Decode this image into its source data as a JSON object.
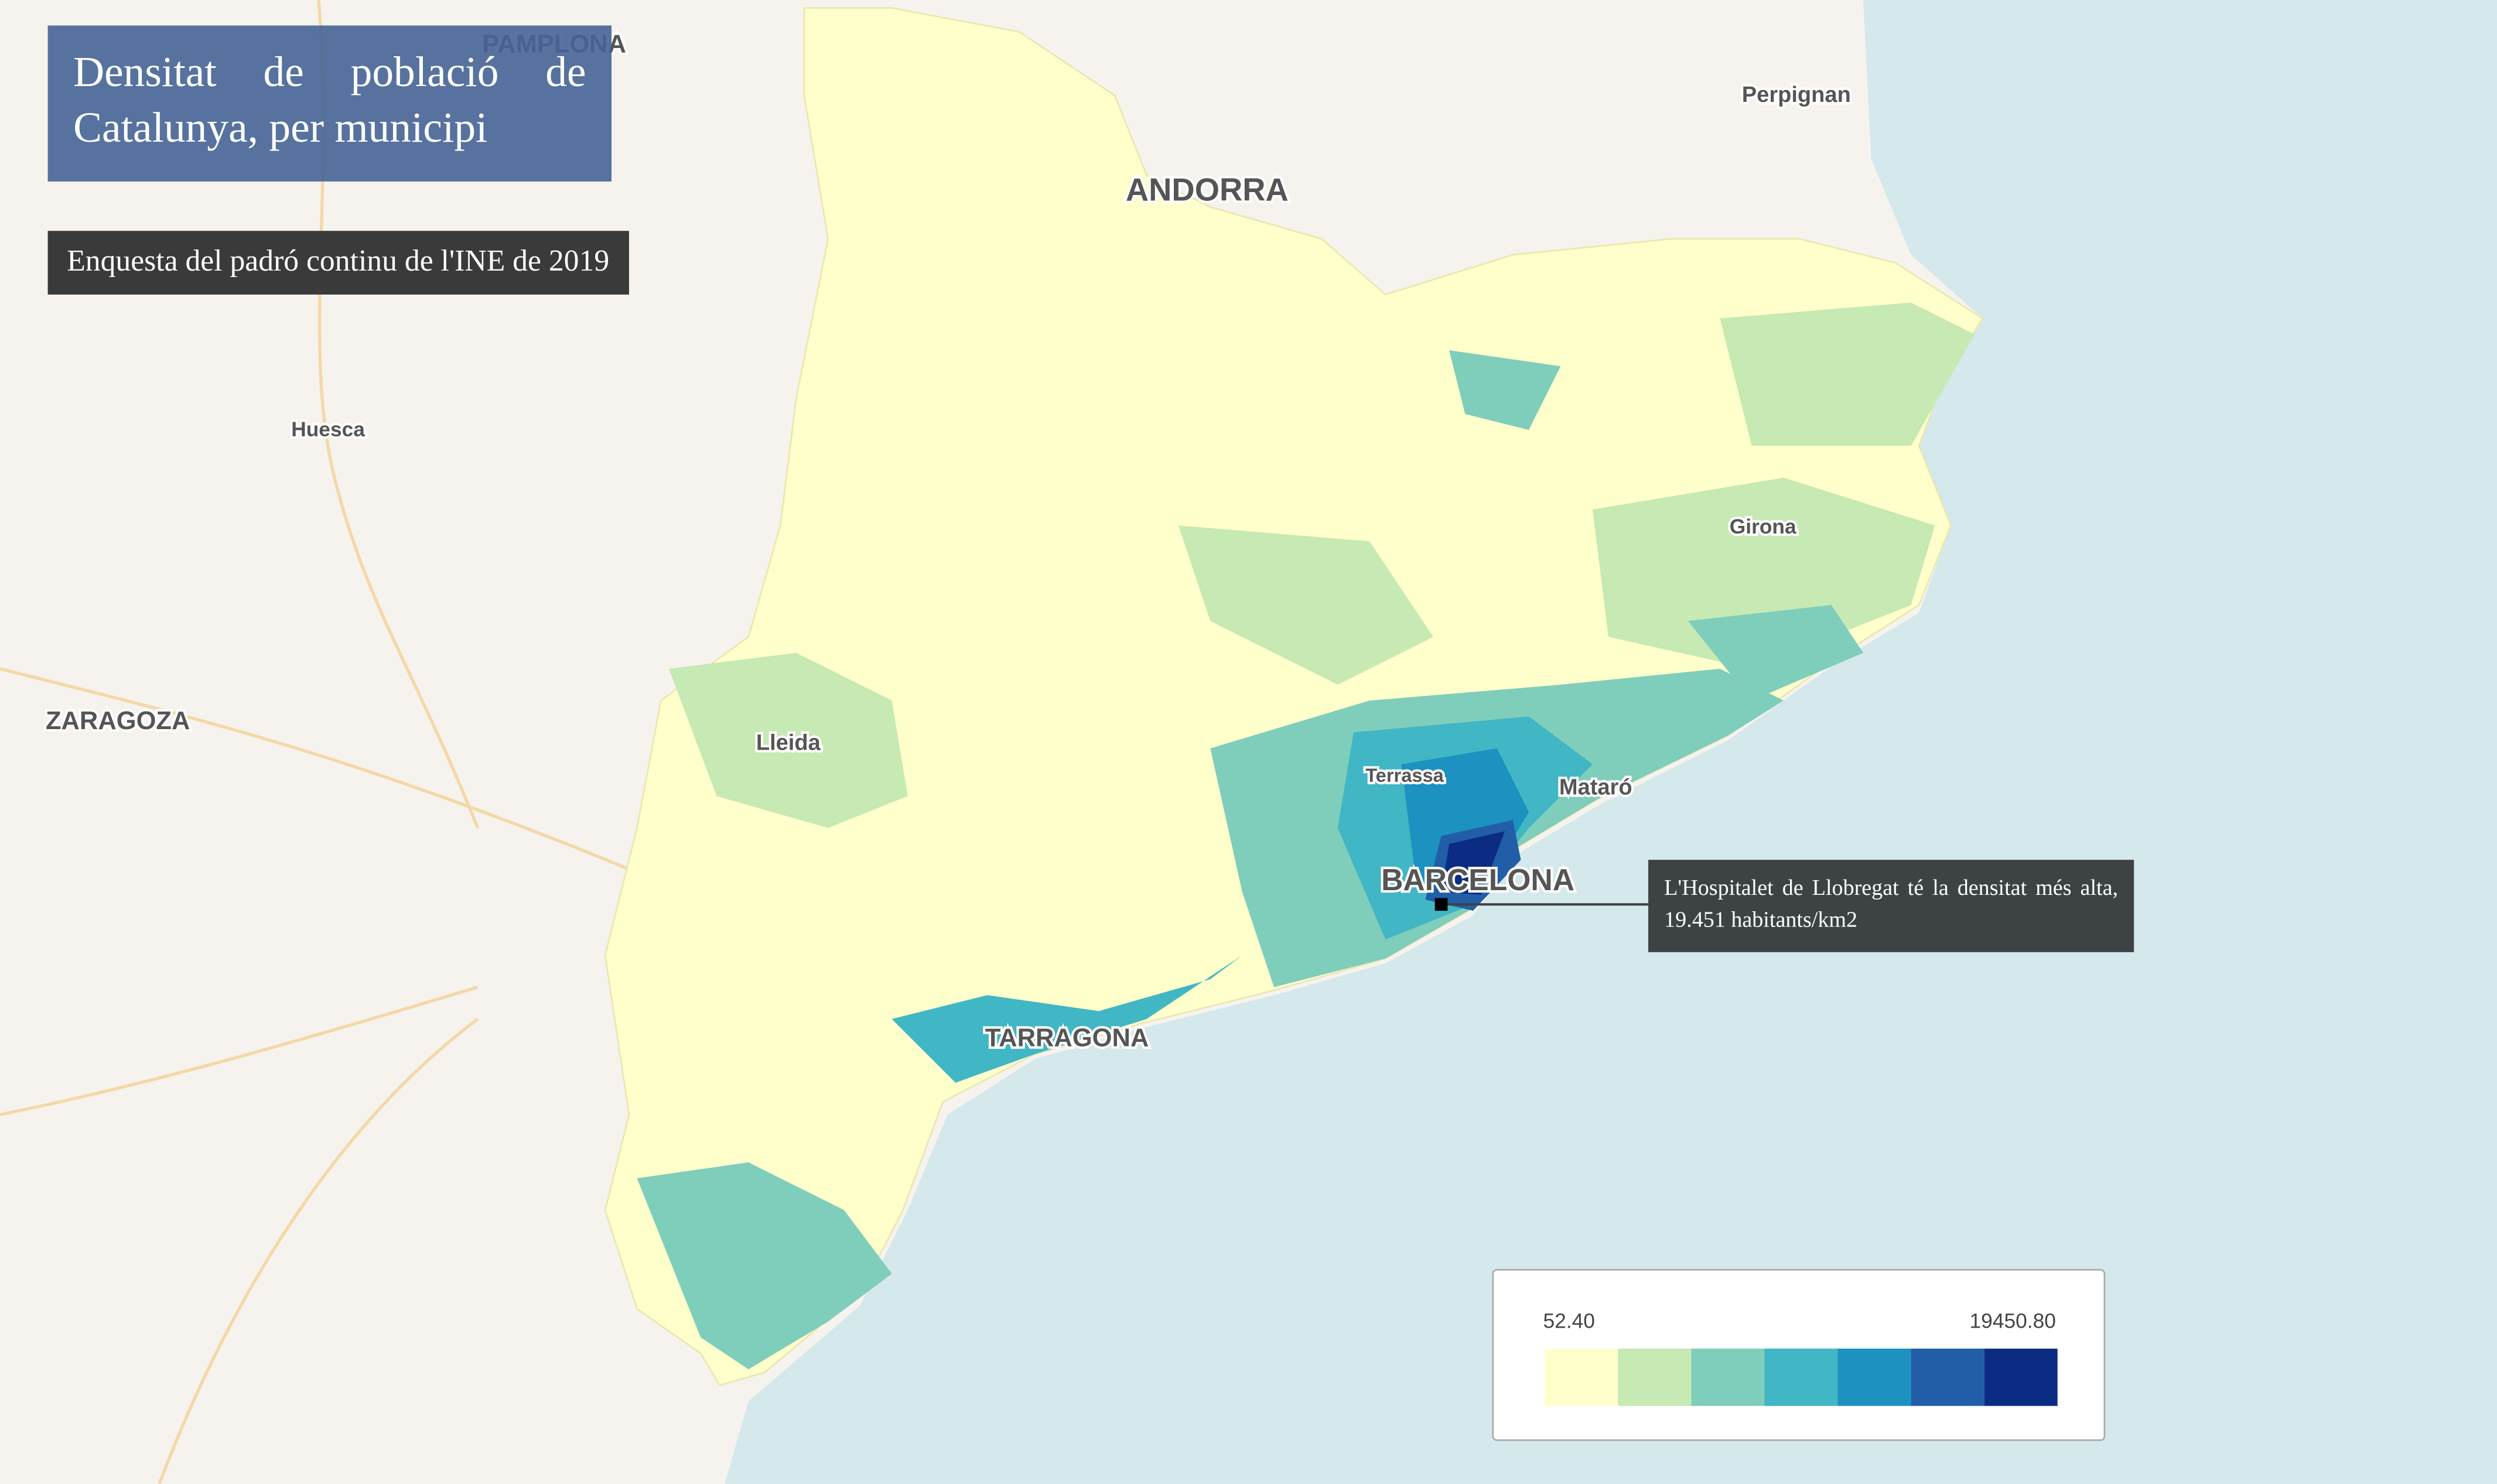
{
  "map": {
    "title": "Densitat de població de Catalunya, per municipi",
    "subtitle": "Enquesta del padró continu de l'INE de 2019",
    "annotation": "L'Hospitalet de Llobregat té la densitat més alta, 19.451 habitants/km2",
    "places": [
      "PAMPLONA",
      "Perpignan",
      "ANDORRA",
      "Huesca",
      "ZARAGOZA",
      "Lleida",
      "Girona",
      "Terrassa",
      "Mataró",
      "BARCELONA",
      "TARRAGONA"
    ],
    "legend": {
      "min_label": "52.40",
      "max_label": "19450.80",
      "colors": [
        "#ffffcc",
        "#c7e9b4",
        "#7fcdbb",
        "#41b6c4",
        "#1d91c0",
        "#225ea8",
        "#0c2c84"
      ]
    }
  }
}
